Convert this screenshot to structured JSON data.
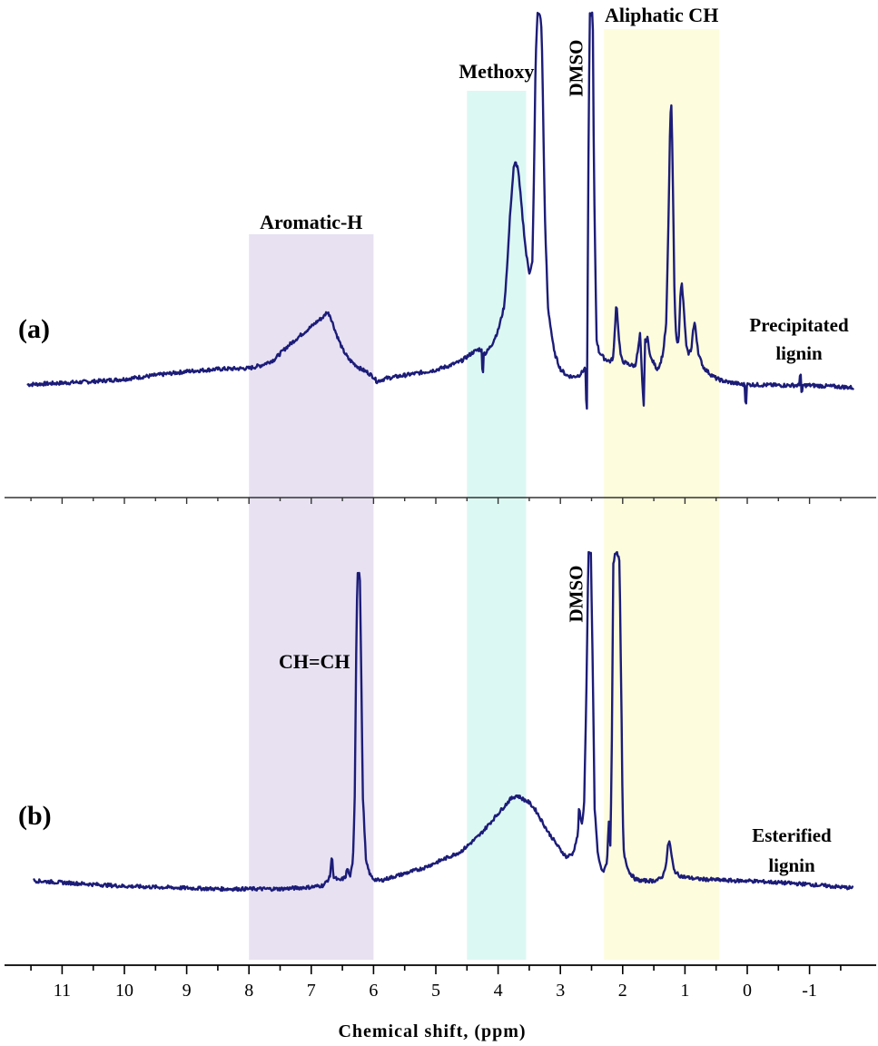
{
  "chart_data": {
    "type": "line",
    "xlabel": "Chemical shift, (ppm)",
    "x_reversed": true,
    "xlim": [
      11.5,
      -1.7
    ],
    "x_ticks": [
      11,
      10,
      9,
      8,
      7,
      6,
      5,
      4,
      3,
      2,
      1,
      0,
      -1
    ],
    "x_tick_labels": [
      "11",
      "10",
      "9",
      "8",
      "7",
      "6",
      "5",
      "4",
      "3",
      "2",
      "1",
      "0",
      "-1"
    ],
    "y_axis_visible": false,
    "grid": false,
    "legend": "none",
    "trace_color": "#1c1c78",
    "bands": [
      {
        "label": "Aromatic-H",
        "from": 8.0,
        "to": 6.0,
        "color": "#e7e1f1"
      },
      {
        "label": "Methoxy",
        "from": 4.5,
        "to": 3.55,
        "color": "#dcf8f3"
      },
      {
        "label": "Aliphatic CH",
        "from": 2.3,
        "to": 0.45,
        "color": "#fdfcdd"
      }
    ],
    "panels": [
      {
        "tag": "(a)",
        "label_line1": "Precipitated",
        "label_line2": "lignin",
        "peak_labels": [
          {
            "text": "DMSO",
            "x": 2.75
          }
        ],
        "noise": 2.5,
        "points": [
          [
            11.55,
            10
          ],
          [
            11,
            12
          ],
          [
            10.5,
            14
          ],
          [
            10,
            17
          ],
          [
            9.5,
            22
          ],
          [
            9,
            27
          ],
          [
            8.5,
            30
          ],
          [
            8,
            31
          ],
          [
            7.8,
            35
          ],
          [
            7.6,
            42
          ],
          [
            7.4,
            58
          ],
          [
            7.2,
            72
          ],
          [
            7.0,
            85
          ],
          [
            6.9,
            92
          ],
          [
            6.8,
            98
          ],
          [
            6.75,
            104
          ],
          [
            6.7,
            100
          ],
          [
            6.6,
            76
          ],
          [
            6.5,
            56
          ],
          [
            6.4,
            43
          ],
          [
            6.3,
            36
          ],
          [
            6.2,
            30
          ],
          [
            6.1,
            26
          ],
          [
            6.0,
            20
          ],
          [
            5.95,
            14
          ],
          [
            5.8,
            18
          ],
          [
            5.5,
            22
          ],
          [
            5.2,
            26
          ],
          [
            5.0,
            29
          ],
          [
            4.8,
            34
          ],
          [
            4.6,
            40
          ],
          [
            4.4,
            52
          ],
          [
            4.3,
            56
          ],
          [
            4.2,
            50
          ],
          [
            4.1,
            62
          ],
          [
            4.0,
            80
          ],
          [
            3.9,
            112
          ],
          [
            3.85,
            170
          ],
          [
            3.8,
            240
          ],
          [
            3.75,
            290
          ],
          [
            3.72,
            298
          ],
          [
            3.68,
            290
          ],
          [
            3.6,
            220
          ],
          [
            3.55,
            180
          ],
          [
            3.5,
            155
          ],
          [
            3.45,
            168
          ],
          [
            3.42,
            300
          ],
          [
            3.4,
            420
          ],
          [
            3.37,
            490
          ],
          [
            3.33,
            490
          ],
          [
            3.3,
            470
          ],
          [
            3.25,
            230
          ],
          [
            3.2,
            110
          ],
          [
            3.1,
            52
          ],
          [
            3.0,
            30
          ],
          [
            2.9,
            22
          ],
          [
            2.8,
            20
          ],
          [
            2.7,
            22
          ],
          [
            2.65,
            26
          ],
          [
            2.6,
            32
          ],
          [
            2.57,
            10
          ],
          [
            2.55,
            300
          ],
          [
            2.53,
            490
          ],
          [
            2.48,
            490
          ],
          [
            2.46,
            270
          ],
          [
            2.42,
            70
          ],
          [
            2.38,
            52
          ],
          [
            2.35,
            50
          ],
          [
            2.3,
            44
          ],
          [
            2.2,
            40
          ],
          [
            2.15,
            45
          ],
          [
            2.12,
            90
          ],
          [
            2.1,
            118
          ],
          [
            2.07,
            80
          ],
          [
            2.03,
            46
          ],
          [
            2.0,
            40
          ],
          [
            1.9,
            36
          ],
          [
            1.8,
            34
          ],
          [
            1.75,
            56
          ],
          [
            1.72,
            76
          ],
          [
            1.69,
            20
          ],
          [
            1.67,
            -10
          ],
          [
            1.65,
            65
          ],
          [
            1.6,
            70
          ],
          [
            1.55,
            44
          ],
          [
            1.5,
            38
          ],
          [
            1.45,
            30
          ],
          [
            1.4,
            36
          ],
          [
            1.35,
            52
          ],
          [
            1.3,
            90
          ],
          [
            1.27,
            200
          ],
          [
            1.24,
            340
          ],
          [
            1.22,
            380
          ],
          [
            1.2,
            300
          ],
          [
            1.17,
            140
          ],
          [
            1.15,
            80
          ],
          [
            1.12,
            62
          ],
          [
            1.1,
            72
          ],
          [
            1.07,
            130
          ],
          [
            1.05,
            140
          ],
          [
            1.02,
            110
          ],
          [
            0.98,
            60
          ],
          [
            0.95,
            50
          ],
          [
            0.9,
            55
          ],
          [
            0.87,
            80
          ],
          [
            0.84,
            90
          ],
          [
            0.82,
            75
          ],
          [
            0.78,
            48
          ],
          [
            0.7,
            32
          ],
          [
            0.6,
            24
          ],
          [
            0.5,
            18
          ],
          [
            0.4,
            15
          ],
          [
            0.3,
            13
          ],
          [
            0.2,
            12
          ],
          [
            0.1,
            10
          ],
          [
            0.0,
            10
          ],
          [
            -0.5,
            9
          ],
          [
            -1.0,
            9
          ],
          [
            -1.5,
            7
          ],
          [
            -1.7,
            6
          ]
        ],
        "spikes": [
          [
            4.25,
            -24
          ],
          [
            2.58,
            -34
          ],
          [
            1.66,
            -36
          ],
          [
            0.02,
            -22
          ],
          [
            -0.85,
            14
          ],
          [
            -0.88,
            -10
          ]
        ]
      },
      {
        "tag": "(b)",
        "label_line1": "Esterified",
        "label_line2": "lignin",
        "peak_labels": [
          {
            "text": "CH=CH",
            "x": 6.95
          },
          {
            "text": "DMSO",
            "x": 2.75
          }
        ],
        "noise": 2.0,
        "points": [
          [
            11.45,
            10
          ],
          [
            11,
            8
          ],
          [
            10.5,
            6
          ],
          [
            10,
            4
          ],
          [
            9.5,
            3
          ],
          [
            9,
            2
          ],
          [
            8.5,
            1
          ],
          [
            8,
            1
          ],
          [
            7.5,
            1
          ],
          [
            7.0,
            3
          ],
          [
            6.8,
            5
          ],
          [
            6.7,
            14
          ],
          [
            6.67,
            38
          ],
          [
            6.64,
            14
          ],
          [
            6.55,
            10
          ],
          [
            6.45,
            14
          ],
          [
            6.42,
            24
          ],
          [
            6.38,
            14
          ],
          [
            6.33,
            30
          ],
          [
            6.3,
            110
          ],
          [
            6.28,
            250
          ],
          [
            6.26,
            350
          ],
          [
            6.22,
            350
          ],
          [
            6.2,
            250
          ],
          [
            6.17,
            100
          ],
          [
            6.12,
            30
          ],
          [
            6.05,
            16
          ],
          [
            6.0,
            12
          ],
          [
            5.9,
            10
          ],
          [
            5.8,
            12
          ],
          [
            5.5,
            18
          ],
          [
            5.2,
            24
          ],
          [
            5.0,
            30
          ],
          [
            4.8,
            36
          ],
          [
            4.6,
            42
          ],
          [
            4.5,
            48
          ],
          [
            4.3,
            60
          ],
          [
            4.1,
            76
          ],
          [
            3.9,
            92
          ],
          [
            3.8,
            100
          ],
          [
            3.7,
            104
          ],
          [
            3.6,
            100
          ],
          [
            3.5,
            96
          ],
          [
            3.4,
            88
          ],
          [
            3.3,
            76
          ],
          [
            3.2,
            64
          ],
          [
            3.1,
            54
          ],
          [
            3.0,
            44
          ],
          [
            2.9,
            36
          ],
          [
            2.8,
            40
          ],
          [
            2.72,
            60
          ],
          [
            2.7,
            90
          ],
          [
            2.66,
            72
          ],
          [
            2.62,
            90
          ],
          [
            2.58,
            230
          ],
          [
            2.55,
            370
          ],
          [
            2.51,
            370
          ],
          [
            2.48,
            240
          ],
          [
            2.45,
            90
          ],
          [
            2.4,
            40
          ],
          [
            2.35,
            24
          ],
          [
            2.3,
            20
          ],
          [
            2.25,
            32
          ],
          [
            2.22,
            80
          ],
          [
            2.2,
            40
          ],
          [
            2.18,
            120
          ],
          [
            2.15,
            360
          ],
          [
            2.12,
            370
          ],
          [
            2.08,
            370
          ],
          [
            2.05,
            360
          ],
          [
            2.02,
            200
          ],
          [
            2.0,
            80
          ],
          [
            1.98,
            40
          ],
          [
            1.95,
            32
          ],
          [
            1.9,
            20
          ],
          [
            1.8,
            12
          ],
          [
            1.7,
            10
          ],
          [
            1.6,
            10
          ],
          [
            1.5,
            10
          ],
          [
            1.4,
            12
          ],
          [
            1.35,
            16
          ],
          [
            1.3,
            30
          ],
          [
            1.27,
            50
          ],
          [
            1.25,
            54
          ],
          [
            1.22,
            40
          ],
          [
            1.18,
            22
          ],
          [
            1.1,
            16
          ],
          [
            1.0,
            14
          ],
          [
            0.8,
            12
          ],
          [
            0.5,
            11
          ],
          [
            0.2,
            10
          ],
          [
            0.0,
            10
          ],
          [
            -0.5,
            8
          ],
          [
            -1.0,
            6
          ],
          [
            -1.5,
            3
          ],
          [
            -1.7,
            2
          ]
        ],
        "spikes": []
      }
    ]
  }
}
